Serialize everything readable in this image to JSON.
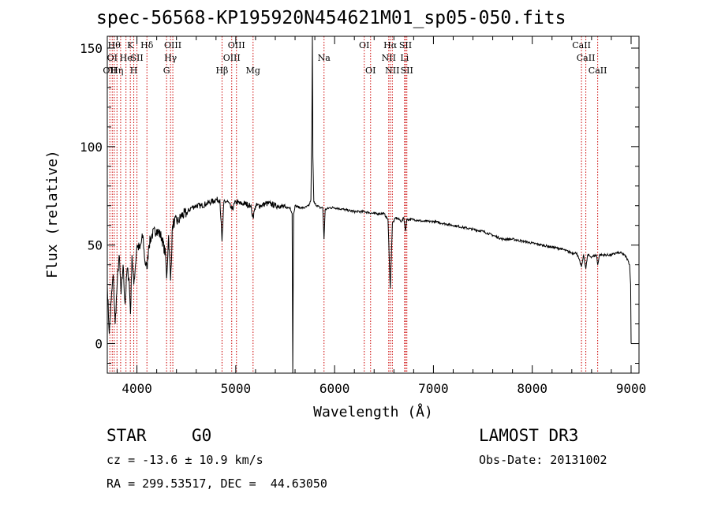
{
  "header": {
    "title": "spec-56568-KP195920N454621M01_sp05-050.fits"
  },
  "chart_data": {
    "type": "line",
    "title": "spec-56568-KP195920N454621M01_sp05-050.fits",
    "xlabel": "Wavelength (Å)",
    "ylabel": "Flux (relative)",
    "xlim": [
      3700,
      9080
    ],
    "ylim": [
      -15,
      156
    ],
    "xticks": [
      4000,
      5000,
      6000,
      7000,
      8000,
      9000
    ],
    "yticks": [
      0,
      50,
      100,
      150
    ],
    "series": [
      {
        "name": "flux",
        "x": [
          3700,
          3720,
          3740,
          3760,
          3780,
          3800,
          3820,
          3840,
          3860,
          3880,
          3900,
          3920,
          3935,
          3950,
          3968,
          3985,
          4000,
          4030,
          4060,
          4080,
          4101,
          4120,
          4150,
          4200,
          4250,
          4290,
          4300,
          4320,
          4340,
          4360,
          4380,
          4420,
          4450,
          4500,
          4550,
          4600,
          4650,
          4700,
          4750,
          4800,
          4840,
          4861,
          4880,
          4920,
          4960,
          5000,
          5050,
          5100,
          5150,
          5175,
          5200,
          5250,
          5300,
          5350,
          5400,
          5450,
          5500,
          5550,
          5570,
          5577,
          5585,
          5600,
          5650,
          5700,
          5740,
          5760,
          5770,
          5775,
          5780,
          5790,
          5800,
          5850,
          5880,
          5893,
          5905,
          5950,
          6000,
          6100,
          6200,
          6300,
          6400,
          6500,
          6540,
          6563,
          6585,
          6620,
          6680,
          6700,
          6717,
          6730,
          6760,
          6800,
          6900,
          7000,
          7100,
          7200,
          7300,
          7400,
          7500,
          7600,
          7700,
          7800,
          7900,
          8000,
          8100,
          8200,
          8300,
          8400,
          8450,
          8498,
          8520,
          8542,
          8560,
          8600,
          8650,
          8662,
          8680,
          8750,
          8800,
          8850,
          8900,
          8930,
          8950,
          8970,
          8985,
          8995,
          9000
        ],
        "values": [
          30,
          5,
          22,
          35,
          10,
          30,
          45,
          25,
          40,
          20,
          38,
          33,
          15,
          45,
          30,
          40,
          50,
          48,
          55,
          42,
          38,
          50,
          55,
          58,
          54,
          45,
          33,
          55,
          32,
          60,
          62,
          62,
          65,
          66,
          69,
          70,
          70,
          71,
          72,
          73,
          73,
          52,
          72,
          72,
          68,
          72,
          71,
          71,
          70,
          64,
          70,
          70,
          71,
          71,
          70,
          70,
          69,
          69,
          66,
          -15,
          66,
          70,
          69,
          69,
          70,
          73,
          110,
          156,
          95,
          72,
          71,
          69,
          69,
          53,
          68,
          69,
          69,
          68,
          67,
          67,
          66,
          66,
          63,
          28,
          61,
          64,
          62,
          64,
          57,
          63,
          63,
          63,
          62,
          62,
          61,
          60,
          59,
          58,
          57,
          55,
          53,
          53,
          52,
          51,
          50,
          49,
          48,
          46,
          46,
          39,
          45,
          38,
          45,
          44,
          45,
          40,
          45,
          45,
          45,
          46,
          46,
          45,
          44,
          42,
          40,
          30,
          0
        ]
      }
    ],
    "line_markers": [
      {
        "wavelength": 3726,
        "label": "OII",
        "row": 2
      },
      {
        "wavelength": 3750,
        "label": "OI",
        "row": 1
      },
      {
        "wavelength": 3770,
        "label": "Hθ",
        "row": 0
      },
      {
        "wavelength": 3798,
        "label": "Hη",
        "row": 2
      },
      {
        "wavelength": 3835,
        "label": "",
        "row": 0
      },
      {
        "wavelength": 3889,
        "label": "He",
        "row": 1
      },
      {
        "wavelength": 3933,
        "label": "K",
        "row": 0
      },
      {
        "wavelength": 3968,
        "label": "H",
        "row": 2
      },
      {
        "wavelength": 4000,
        "label": "SII",
        "row": 1
      },
      {
        "wavelength": 4101,
        "label": "Hδ",
        "row": 0
      },
      {
        "wavelength": 4300,
        "label": "G",
        "row": 2
      },
      {
        "wavelength": 4340,
        "label": "Hγ",
        "row": 1
      },
      {
        "wavelength": 4363,
        "label": "OIII",
        "row": 0
      },
      {
        "wavelength": 4861,
        "label": "Hβ",
        "row": 2
      },
      {
        "wavelength": 4959,
        "label": "OIII",
        "row": 1
      },
      {
        "wavelength": 5007,
        "label": "OIII",
        "row": 0
      },
      {
        "wavelength": 5175,
        "label": "Mg",
        "row": 2
      },
      {
        "wavelength": 5893,
        "label": "Na",
        "row": 1
      },
      {
        "wavelength": 6300,
        "label": "OI",
        "row": 0
      },
      {
        "wavelength": 6364,
        "label": "OI",
        "row": 2
      },
      {
        "wavelength": 6548,
        "label": "NII",
        "row": 1
      },
      {
        "wavelength": 6563,
        "label": "Hα",
        "row": 0
      },
      {
        "wavelength": 6584,
        "label": "NII",
        "row": 2
      },
      {
        "wavelength": 6708,
        "label": "Li",
        "row": 1
      },
      {
        "wavelength": 6717,
        "label": "SII",
        "row": 0
      },
      {
        "wavelength": 6731,
        "label": "SII",
        "row": 2
      },
      {
        "wavelength": 8498,
        "label": "CaII",
        "row": 0
      },
      {
        "wavelength": 8542,
        "label": "CaII",
        "row": 1
      },
      {
        "wavelength": 8662,
        "label": "CaII",
        "row": 2
      }
    ],
    "colors": {
      "line": "#000000",
      "marker": "#cc0000",
      "background": "#ffffff"
    }
  },
  "footer": {
    "object_class": "STAR",
    "subclass": "G0",
    "survey": "LAMOST DR3",
    "cz_text": "cz = -13.6 ± 10.9 km/s",
    "obs_date_text": "Obs-Date: 20131002",
    "radec_text": "RA = 299.53517, DEC =  44.63050"
  }
}
